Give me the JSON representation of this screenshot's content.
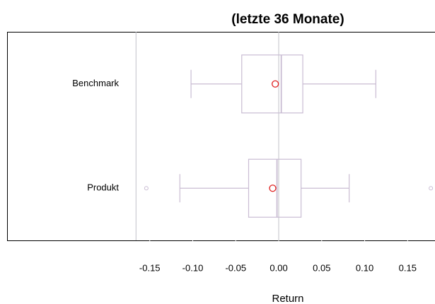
{
  "chart_data": {
    "type": "boxplot",
    "orientation": "horizontal",
    "title": "(letzte 36 Monate)",
    "x_label": "Return",
    "categories": [
      "Benchmark",
      "Produkt"
    ],
    "boxes": [
      {
        "low": -0.102,
        "q1": -0.043,
        "median": 0.003,
        "q3": 0.028,
        "high": 0.113,
        "mean": -0.004,
        "outliers": []
      },
      {
        "low": -0.115,
        "q1": -0.035,
        "median": -0.002,
        "q3": 0.026,
        "high": 0.082,
        "mean": -0.007,
        "outliers": [
          -0.154,
          0.177
        ]
      }
    ],
    "box_color": "#c9bcd3",
    "mean_color": "#e02020",
    "ref_line_color": "#c0c0c8",
    "ref_lines": [
      -0.166,
      0
    ],
    "xlim": [
      -0.316,
      0.181
    ],
    "xticks": [
      -0.15,
      {
        "value": -0.1,
        "label": "-0.10"
      },
      -0.05,
      {
        "value": 0,
        "label": "0.00"
      },
      0.05,
      {
        "value": 0.1,
        "label": "0.10"
      },
      0.15
    ]
  }
}
